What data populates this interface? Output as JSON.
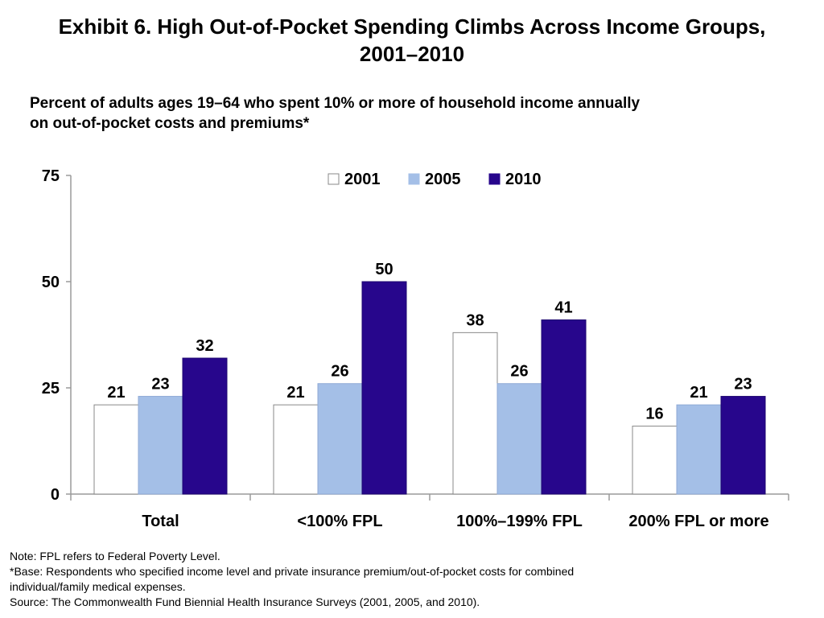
{
  "title_line1": "Exhibit 6. High Out-of-Pocket Spending Climbs Across Income Groups,",
  "title_line2": "2001–2010",
  "subtitle_line1": "Percent of adults ages 19–64 who spent 10% or more of household income annually",
  "subtitle_line2": "on out-of-pocket costs and premiums*",
  "notes": {
    "note": "Note: FPL refers to Federal Poverty Level.",
    "base_line1": "*Base: Respondents who specified income level and private insurance premium/out-of-pocket costs for combined",
    "base_line2": "individual/family medical expenses.",
    "source": "Source: The Commonwealth Fund Biennial Health Insurance Surveys (2001, 2005, and 2010)."
  },
  "chart_data": {
    "type": "bar",
    "categories": [
      "Total",
      "<100% FPL",
      "100%–199% FPL",
      "200% FPL or more"
    ],
    "series": [
      {
        "name": "2001",
        "values": [
          21,
          21,
          38,
          16
        ],
        "color": "#ffffff"
      },
      {
        "name": "2005",
        "values": [
          23,
          26,
          26,
          21
        ],
        "color": "#a4bfe7"
      },
      {
        "name": "2010",
        "values": [
          32,
          50,
          41,
          23
        ],
        "color": "#27068c"
      }
    ],
    "ylim": [
      0,
      75
    ],
    "yticks": [
      0,
      25,
      50,
      75
    ],
    "legend_position": "top-center",
    "grid": false,
    "xlabel": "",
    "ylabel": ""
  }
}
